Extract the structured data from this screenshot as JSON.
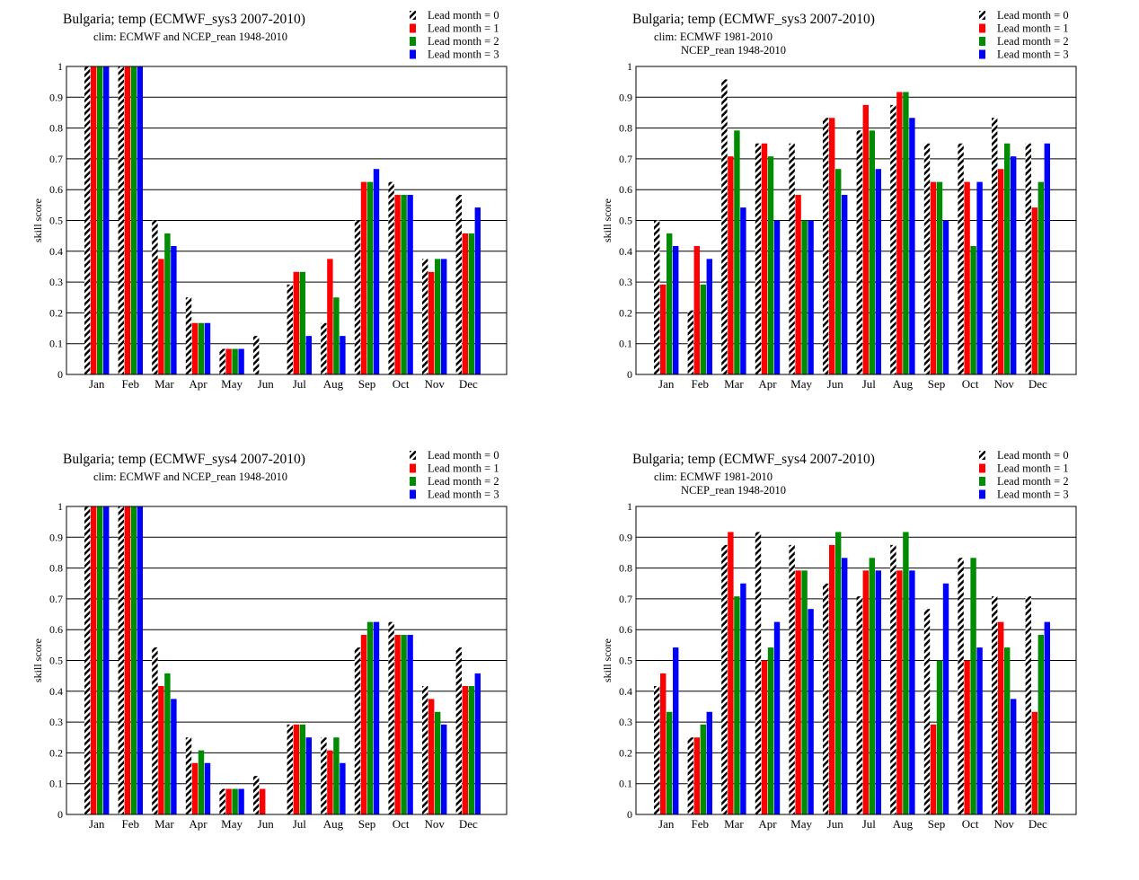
{
  "colors": {
    "lead0": "hatched-black-white",
    "lead1": "#ff0000",
    "lead2": "#008c00",
    "lead3": "#0000ff",
    "grid": "#000000"
  },
  "chart_data": [
    {
      "type": "bar",
      "title": "Bulgaria; temp (ECMWF_sys3 2007-2010)",
      "subtitle": [
        "clim: ECMWF and NCEP_rean 1948-2010"
      ],
      "ylabel": "skill score",
      "xlabel": "",
      "ylim": [
        0,
        1
      ],
      "yticks": [
        "0",
        "0.1",
        "0.2",
        "0.3",
        "0.4",
        "0.5",
        "0.6",
        "0.7",
        "0.8",
        "0.9",
        "1"
      ],
      "grid": "horizontal",
      "legend_position": "top-right",
      "categories": [
        "Jan",
        "Feb",
        "Mar",
        "Apr",
        "May",
        "Jun",
        "Jul",
        "Aug",
        "Sep",
        "Oct",
        "Nov",
        "Dec"
      ],
      "series": [
        {
          "name": "Lead month = 0",
          "values": [
            1,
            1,
            0.5,
            0.25,
            0.083,
            0.125,
            0.292,
            0.167,
            0.5,
            0.625,
            0.375,
            0.583
          ]
        },
        {
          "name": "Lead month = 1",
          "values": [
            1,
            1,
            0.375,
            0.167,
            0.083,
            0,
            0.333,
            0.375,
            0.625,
            0.583,
            0.333,
            0.458
          ]
        },
        {
          "name": "Lead month = 2",
          "values": [
            1,
            1,
            0.458,
            0.167,
            0.083,
            0,
            0.333,
            0.25,
            0.625,
            0.583,
            0.375,
            0.458
          ]
        },
        {
          "name": "Lead month = 3",
          "values": [
            1,
            1,
            0.417,
            0.167,
            0.083,
            0,
            0.125,
            0.125,
            0.667,
            0.583,
            0.375,
            0.542
          ]
        }
      ]
    },
    {
      "type": "bar",
      "title": "Bulgaria; temp (ECMWF_sys3 2007-2010)",
      "subtitle": [
        "clim: ECMWF 1981-2010",
        "NCEP_rean 1948-2010"
      ],
      "ylabel": "skill score",
      "xlabel": "",
      "ylim": [
        0,
        1
      ],
      "yticks": [
        "0",
        "0.1",
        "0.2",
        "0.3",
        "0.4",
        "0.5",
        "0.6",
        "0.7",
        "0.8",
        "0.9",
        "1"
      ],
      "grid": "horizontal",
      "legend_position": "top-right",
      "categories": [
        "Jan",
        "Feb",
        "Mar",
        "Apr",
        "May",
        "Jun",
        "Jul",
        "Aug",
        "Sep",
        "Oct",
        "Nov",
        "Dec"
      ],
      "series": [
        {
          "name": "Lead month = 0",
          "values": [
            0.5,
            0.208,
            0.958,
            0.75,
            0.75,
            0.833,
            0.792,
            0.875,
            0.75,
            0.75,
            0.833,
            0.75
          ]
        },
        {
          "name": "Lead month = 1",
          "values": [
            0.292,
            0.417,
            0.708,
            0.75,
            0.583,
            0.833,
            0.875,
            0.917,
            0.625,
            0.625,
            0.667,
            0.542
          ]
        },
        {
          "name": "Lead month = 2",
          "values": [
            0.458,
            0.292,
            0.792,
            0.708,
            0.5,
            0.667,
            0.792,
            0.917,
            0.625,
            0.417,
            0.75,
            0.625
          ]
        },
        {
          "name": "Lead month = 3",
          "values": [
            0.417,
            0.375,
            0.542,
            0.5,
            0.5,
            0.583,
            0.667,
            0.833,
            0.5,
            0.625,
            0.708,
            0.75
          ]
        }
      ]
    },
    {
      "type": "bar",
      "title": "Bulgaria; temp (ECMWF_sys4 2007-2010)",
      "subtitle": [
        "clim: ECMWF and NCEP_rean 1948-2010"
      ],
      "ylabel": "skill score",
      "xlabel": "",
      "ylim": [
        0,
        1
      ],
      "yticks": [
        "0",
        "0.1",
        "0.2",
        "0.3",
        "0.4",
        "0.5",
        "0.6",
        "0.7",
        "0.8",
        "0.9",
        "1"
      ],
      "grid": "horizontal",
      "legend_position": "top-right",
      "categories": [
        "Jan",
        "Feb",
        "Mar",
        "Apr",
        "May",
        "Jun",
        "Jul",
        "Aug",
        "Sep",
        "Oct",
        "Nov",
        "Dec"
      ],
      "series": [
        {
          "name": "Lead month = 0",
          "values": [
            1,
            1,
            0.542,
            0.25,
            0.083,
            0.125,
            0.292,
            0.25,
            0.542,
            0.625,
            0.417,
            0.542
          ]
        },
        {
          "name": "Lead month = 1",
          "values": [
            1,
            1,
            0.417,
            0.167,
            0.083,
            0.083,
            0.292,
            0.208,
            0.583,
            0.583,
            0.375,
            0.417
          ]
        },
        {
          "name": "Lead month = 2",
          "values": [
            1,
            1,
            0.458,
            0.208,
            0.083,
            0,
            0.292,
            0.25,
            0.625,
            0.583,
            0.333,
            0.417
          ]
        },
        {
          "name": "Lead month = 3",
          "values": [
            1,
            1,
            0.375,
            0.167,
            0.083,
            0,
            0.25,
            0.167,
            0.625,
            0.583,
            0.292,
            0.458
          ]
        }
      ]
    },
    {
      "type": "bar",
      "title": "Bulgaria; temp (ECMWF_sys4 2007-2010)",
      "subtitle": [
        "clim: ECMWF 1981-2010",
        "NCEP_rean 1948-2010"
      ],
      "ylabel": "skill score",
      "xlabel": "",
      "ylim": [
        0,
        1
      ],
      "yticks": [
        "0",
        "0.1",
        "0.2",
        "0.3",
        "0.4",
        "0.5",
        "0.6",
        "0.7",
        "0.8",
        "0.9",
        "1"
      ],
      "grid": "horizontal",
      "legend_position": "top-right",
      "categories": [
        "Jan",
        "Feb",
        "Mar",
        "Apr",
        "May",
        "Jun",
        "Jul",
        "Aug",
        "Sep",
        "Oct",
        "Nov",
        "Dec"
      ],
      "series": [
        {
          "name": "Lead month = 0",
          "values": [
            0.417,
            0.25,
            0.875,
            0.917,
            0.875,
            0.75,
            0.708,
            0.875,
            0.667,
            0.833,
            0.708,
            0.708
          ]
        },
        {
          "name": "Lead month = 1",
          "values": [
            0.458,
            0.25,
            0.917,
            0.5,
            0.792,
            0.875,
            0.792,
            0.792,
            0.292,
            0.5,
            0.625,
            0.333
          ]
        },
        {
          "name": "Lead month = 2",
          "values": [
            0.333,
            0.292,
            0.708,
            0.542,
            0.792,
            0.917,
            0.833,
            0.917,
            0.5,
            0.833,
            0.542,
            0.583
          ]
        },
        {
          "name": "Lead month = 3",
          "values": [
            0.542,
            0.333,
            0.75,
            0.625,
            0.667,
            0.833,
            0.792,
            0.792,
            0.75,
            0.542,
            0.375,
            0.625
          ]
        }
      ]
    }
  ]
}
